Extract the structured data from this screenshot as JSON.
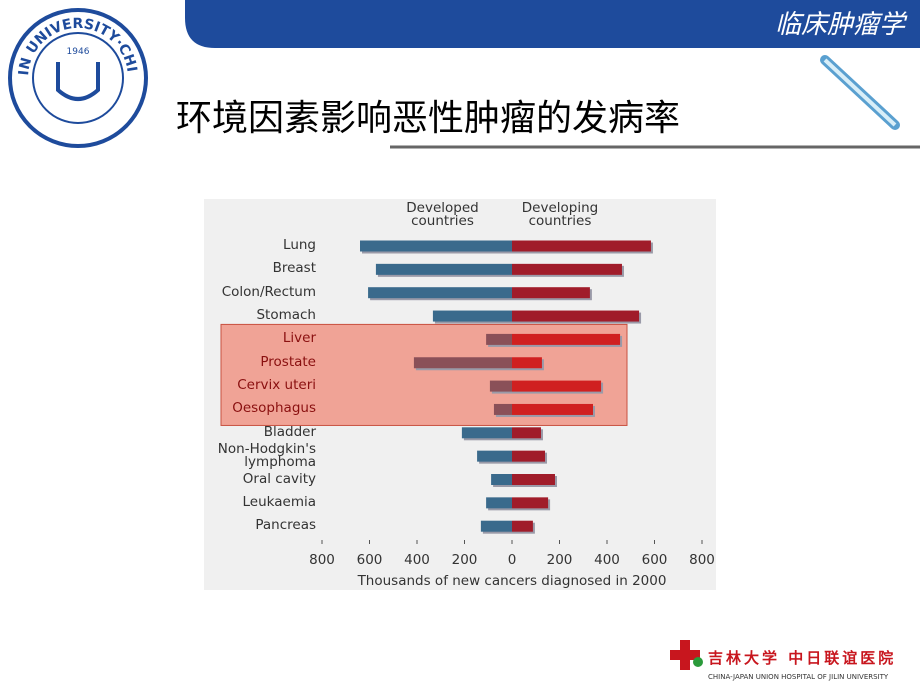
{
  "header": "临床肿瘤学",
  "title": "环境因素影响恶性肿瘤的发病率",
  "logo": {
    "ring": "JILIN UNIVERSITY·CHINA",
    "year": "1946"
  },
  "footer": {
    "cn": "吉林大学 中日联谊医院",
    "en": "CHINA-JAPAN UNION HOSPITAL OF JILIN UNIVERSITY"
  },
  "chart_data": {
    "type": "diverging-bar",
    "categories": [
      "Lung",
      "Breast",
      "Colon/Rectum",
      "Stomach",
      "Liver",
      "Prostate",
      "Cervix uteri",
      "Oesophagus",
      "Bladder",
      "Non-Hodgkin's lymphoma",
      "Oral cavity",
      "Leukaemia",
      "Pancreas"
    ],
    "series": [
      {
        "name": "Developed countries",
        "color": "#3a6a8c",
        "side": "left",
        "values": [
          640,
          573,
          606,
          333,
          109,
          413,
          93,
          76,
          211,
          147,
          88,
          109,
          131
        ]
      },
      {
        "name": "Developing countries",
        "color": "#a01c2a",
        "side": "right",
        "values": [
          585,
          463,
          328,
          535,
          455,
          126,
          375,
          341,
          122,
          139,
          181,
          152,
          88
        ]
      }
    ],
    "xlim": [
      -800,
      800
    ],
    "xticks": [
      {
        "value": -800,
        "label": "800"
      },
      {
        "value": -600,
        "label": "600"
      },
      {
        "value": -400,
        "label": "400"
      },
      {
        "value": -200,
        "label": "200"
      },
      0,
      200,
      400,
      600,
      800
    ],
    "xlabel": "Thousands of new cancers diagnosed in 2000"
  }
}
